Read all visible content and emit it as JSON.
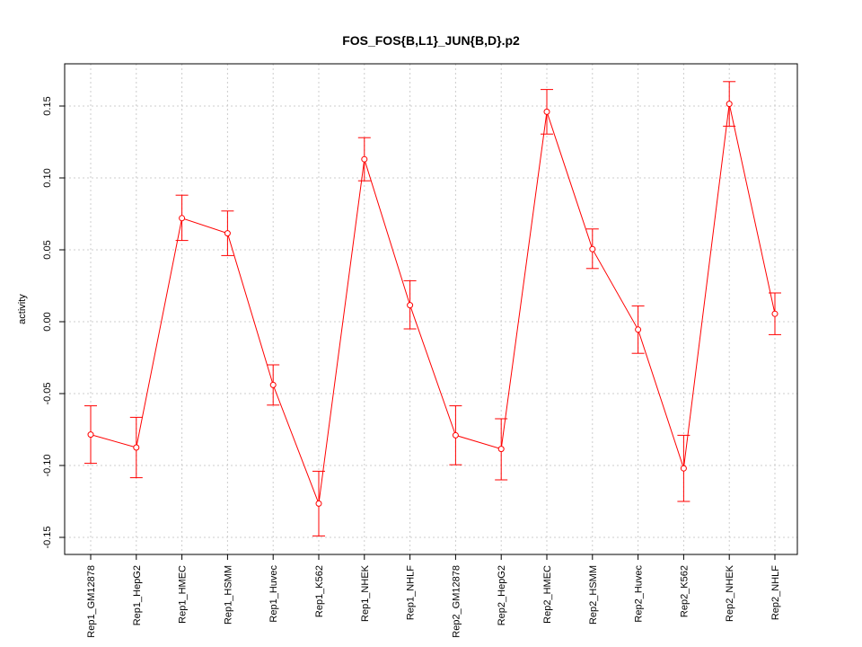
{
  "chart_data": {
    "type": "line",
    "title": "FOS_FOS{B,L1}_JUN{B,D}.p2",
    "xlabel": "",
    "ylabel": "activity",
    "ylim": [
      -0.16,
      0.18
    ],
    "yticks": [
      -0.15,
      -0.1,
      -0.05,
      0.0,
      0.05,
      0.1,
      0.15
    ],
    "ytick_labels": [
      "-0.15",
      "-0.10",
      "-0.05",
      "0.00",
      "0.05",
      "0.10",
      "0.15"
    ],
    "categories": [
      "Rep1_GM12878",
      "Rep1_HepG2",
      "Rep1_HMEC",
      "Rep1_HSMM",
      "Rep1_Huvec",
      "Rep1_K562",
      "Rep1_NHEK",
      "Rep1_NHLF",
      "Rep2_GM12878",
      "Rep2_HepG2",
      "Rep2_HMEC",
      "Rep2_HSMM",
      "Rep2_Huvec",
      "Rep2_K562",
      "Rep2_NHEK",
      "Rep2_NHLF"
    ],
    "series": [
      {
        "name": "activity",
        "color": "#ff0000",
        "values": [
          -0.0785,
          -0.0875,
          0.072,
          0.0615,
          -0.044,
          -0.1265,
          0.113,
          0.0115,
          -0.079,
          -0.0885,
          0.146,
          0.0505,
          -0.0055,
          -0.102,
          0.1515,
          0.0055
        ],
        "err_low": [
          -0.0985,
          -0.1085,
          0.0565,
          0.046,
          -0.058,
          -0.149,
          0.098,
          -0.005,
          -0.0995,
          -0.11,
          0.1305,
          0.037,
          -0.022,
          -0.125,
          0.136,
          -0.009
        ],
        "err_high": [
          -0.0585,
          -0.0665,
          0.088,
          0.077,
          -0.03,
          -0.104,
          0.128,
          0.0285,
          -0.0585,
          -0.0675,
          0.1615,
          0.0645,
          0.011,
          -0.079,
          0.167,
          0.02
        ]
      }
    ],
    "grid": true,
    "grid_color": "#cccccc",
    "axis_color": "#000000"
  }
}
